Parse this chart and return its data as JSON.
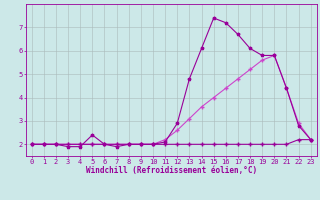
{
  "bg_color": "#cce8e8",
  "grid_color": "#aabbbb",
  "line_color1": "#990099",
  "line_color2": "#cc44cc",
  "xlabel": "Windchill (Refroidissement éolien,°C)",
  "xlim": [
    -0.5,
    23.5
  ],
  "ylim": [
    1.5,
    8.0
  ],
  "xticks": [
    0,
    1,
    2,
    3,
    4,
    5,
    6,
    7,
    8,
    9,
    10,
    11,
    12,
    13,
    14,
    15,
    16,
    17,
    18,
    19,
    20,
    21,
    22,
    23
  ],
  "yticks": [
    2,
    3,
    4,
    5,
    6,
    7
  ],
  "series1_x": [
    0,
    1,
    2,
    3,
    4,
    5,
    6,
    7,
    8,
    9,
    10,
    11,
    12,
    13,
    14,
    15,
    16,
    17,
    18,
    19,
    20,
    21,
    22,
    23
  ],
  "series1_y": [
    2.0,
    2.0,
    2.0,
    1.9,
    1.9,
    2.4,
    2.0,
    1.9,
    2.0,
    2.0,
    2.0,
    2.1,
    2.9,
    4.8,
    6.1,
    7.4,
    7.2,
    6.7,
    6.1,
    5.8,
    5.8,
    4.4,
    2.8,
    2.2
  ],
  "series2_x": [
    0,
    1,
    2,
    3,
    4,
    5,
    6,
    7,
    8,
    9,
    10,
    11,
    12,
    13,
    14,
    15,
    16,
    17,
    18,
    19,
    20,
    21,
    22,
    23
  ],
  "series2_y": [
    2.0,
    2.0,
    2.0,
    2.0,
    2.0,
    2.0,
    2.0,
    2.0,
    2.0,
    2.0,
    2.0,
    2.2,
    2.6,
    3.1,
    3.6,
    4.0,
    4.4,
    4.8,
    5.2,
    5.6,
    5.8,
    4.4,
    2.9,
    2.2
  ],
  "series3_x": [
    0,
    1,
    2,
    3,
    4,
    5,
    6,
    7,
    8,
    9,
    10,
    11,
    12,
    13,
    14,
    15,
    16,
    17,
    18,
    19,
    20,
    21,
    22,
    23
  ],
  "series3_y": [
    2.0,
    2.0,
    2.0,
    2.0,
    2.0,
    2.0,
    2.0,
    2.0,
    2.0,
    2.0,
    2.0,
    2.0,
    2.0,
    2.0,
    2.0,
    2.0,
    2.0,
    2.0,
    2.0,
    2.0,
    2.0,
    2.0,
    2.2,
    2.2
  ],
  "tick_fontsize": 5.0,
  "xlabel_fontsize": 5.5,
  "marker_size": 2.5,
  "line_width": 0.8
}
